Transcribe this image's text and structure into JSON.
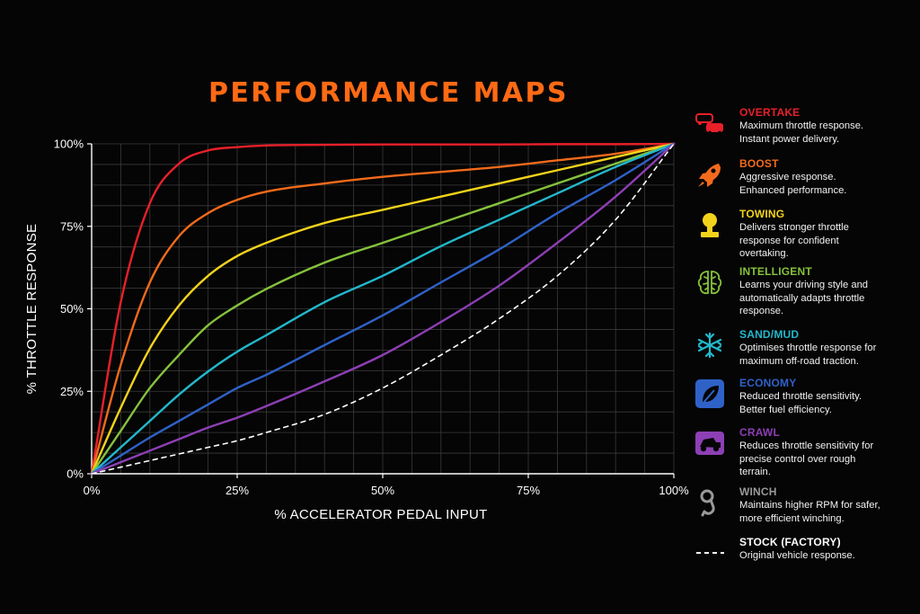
{
  "title": "PERFORMANCE MAPS",
  "chart_data": {
    "type": "line",
    "title": "PERFORMANCE MAPS",
    "xlabel": "% ACCELERATOR PEDAL INPUT",
    "ylabel": "% THROTTLE RESPONSE",
    "xlim": [
      0,
      100
    ],
    "ylim": [
      0,
      100
    ],
    "x_ticks": [
      "0%",
      "25%",
      "50%",
      "75%",
      "100%"
    ],
    "y_ticks": [
      "0%",
      "25%",
      "50%",
      "75%",
      "100%"
    ],
    "grid": true,
    "legend_position": "right",
    "x": [
      0,
      5,
      10,
      15,
      20,
      25,
      30,
      40,
      50,
      60,
      70,
      80,
      90,
      100
    ],
    "series": [
      {
        "name": "OVERTAKE",
        "color": "#e8202a",
        "dashed": false,
        "values": [
          0,
          52,
          82,
          94,
          98,
          99,
          99.5,
          99.7,
          99.8,
          99.8,
          99.8,
          99.9,
          99.9,
          100
        ]
      },
      {
        "name": "BOOST",
        "color": "#f26a1b",
        "dashed": false,
        "values": [
          0,
          33,
          58,
          72,
          79,
          83,
          85.5,
          88,
          90,
          91.5,
          93,
          95,
          97,
          100
        ]
      },
      {
        "name": "TOWING",
        "color": "#f2d31b",
        "dashed": false,
        "values": [
          0,
          20,
          38,
          51,
          60,
          66,
          70,
          76,
          80,
          84,
          88,
          92,
          96,
          100
        ]
      },
      {
        "name": "INTELLIGENT",
        "color": "#86c23c",
        "dashed": false,
        "values": [
          0,
          13,
          26,
          36,
          45,
          51,
          56,
          64,
          70,
          76,
          82,
          88,
          94,
          100
        ]
      },
      {
        "name": "SAND/MUD",
        "color": "#23b8cc",
        "dashed": false,
        "values": [
          0,
          8,
          16,
          24,
          31,
          37,
          42,
          52,
          60,
          69,
          77,
          85,
          93,
          100
        ]
      },
      {
        "name": "ECONOMY",
        "color": "#2f62c8",
        "dashed": false,
        "values": [
          0,
          5.5,
          11,
          16,
          21,
          26,
          30,
          39,
          48,
          58,
          68,
          79,
          89,
          100
        ]
      },
      {
        "name": "CRAWL",
        "color": "#8d3fb5",
        "dashed": false,
        "values": [
          0,
          3.5,
          7,
          10.5,
          14,
          17,
          20.5,
          28,
          36,
          46,
          57,
          70,
          84,
          100
        ]
      },
      {
        "name": "STOCK (FACTORY)",
        "color": "#ffffff",
        "dashed": true,
        "values": [
          0,
          2,
          4,
          6,
          8,
          10,
          12.5,
          18,
          26,
          36,
          47,
          60,
          77,
          100
        ]
      }
    ]
  },
  "legend": [
    {
      "name": "OVERTAKE",
      "color": "#e8202a",
      "icon": "cars-icon",
      "desc": [
        "Maximum throttle response.",
        "Instant power delivery."
      ]
    },
    {
      "name": "BOOST",
      "color": "#f26a1b",
      "icon": "rocket-icon",
      "desc": [
        "Aggressive response.",
        "Enhanced performance."
      ]
    },
    {
      "name": "TOWING",
      "color": "#f2d31b",
      "icon": "tow-hitch-icon",
      "desc": [
        "Delivers stronger throttle",
        "response for confident",
        "overtaking."
      ]
    },
    {
      "name": "INTELLIGENT",
      "color": "#86c23c",
      "icon": "brain-icon",
      "desc": [
        "Learns your driving style and",
        "automatically adapts throttle",
        "response."
      ]
    },
    {
      "name": "SAND/MUD",
      "color": "#23b8cc",
      "icon": "terrain-icon",
      "desc": [
        "Optimises throttle response for",
        "maximum off-road traction."
      ]
    },
    {
      "name": "ECONOMY",
      "color": "#2f62c8",
      "icon": "leaf-icon",
      "desc": [
        "Reduced throttle sensitivity.",
        "Better fuel efficiency."
      ]
    },
    {
      "name": "CRAWL",
      "color": "#8d3fb5",
      "icon": "crawl-truck-icon",
      "desc": [
        "Reduces throttle sensitivity for",
        "precise control over rough",
        "terrain."
      ]
    },
    {
      "name": "WINCH",
      "color": "#9a9a9a",
      "icon": "winch-hook-icon",
      "desc": [
        "Maintains higher RPM for safer,",
        "more efficient winching."
      ]
    },
    {
      "name": "STOCK (FACTORY)",
      "color": "#ffffff",
      "icon": "dashed-line-icon",
      "desc": [
        "Original vehicle response."
      ]
    }
  ]
}
